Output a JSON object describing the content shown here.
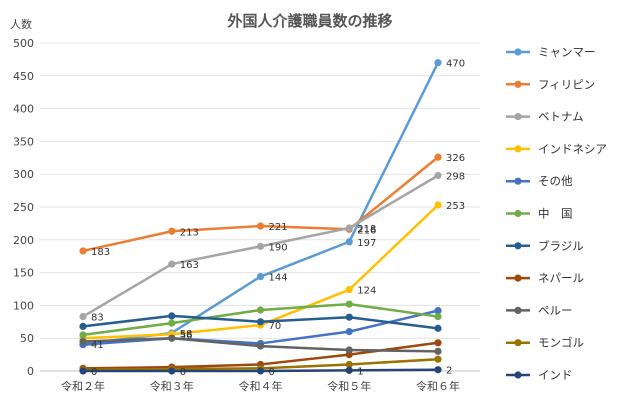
{
  "chart_data": {
    "type": "line",
    "title": "外国人介護職員数の推移",
    "ylabel": "人数",
    "xlabel": "",
    "categories": [
      "令和２年",
      "令和３年",
      "令和４年",
      "令和５年",
      "令和６年"
    ],
    "ylim": [
      0,
      500
    ],
    "yticks": [
      0,
      50,
      100,
      150,
      200,
      250,
      300,
      350,
      400,
      450,
      500
    ],
    "grid": true,
    "legend_position": "right",
    "series": [
      {
        "name": "ミャンマー",
        "color": "#5B9BD5",
        "values": [
          41,
          58,
          144,
          197,
          470
        ],
        "labels": [
          "41",
          "58",
          "144",
          "197",
          "470"
        ]
      },
      {
        "name": "フィリピン",
        "color": "#ED7D31",
        "values": [
          183,
          213,
          221,
          216,
          326
        ],
        "labels": [
          "183",
          "213",
          "221",
          "216",
          "326"
        ]
      },
      {
        "name": "ベトナム",
        "color": "#A5A5A5",
        "values": [
          83,
          163,
          190,
          218,
          298
        ],
        "labels": [
          "83",
          "163",
          "190",
          "218",
          "298"
        ]
      },
      {
        "name": "インドネシア",
        "color": "#FFC000",
        "values": [
          50,
          56,
          70,
          124,
          253
        ],
        "labels": [
          "",
          "56",
          "70",
          "124",
          "253"
        ]
      },
      {
        "name": "その他",
        "color": "#4472C4",
        "values": [
          40,
          50,
          42,
          60,
          92
        ],
        "labels": [],
        "hide_labels": true
      },
      {
        "name": "中　国",
        "color": "#70AD47",
        "values": [
          55,
          73,
          93,
          102,
          83
        ],
        "labels": []
      },
      {
        "name": "ブラジル",
        "color": "#255E91",
        "values": [
          68,
          84,
          75,
          82,
          65
        ],
        "labels": []
      },
      {
        "name": "ネパール",
        "color": "#9E480E",
        "values": [
          4,
          6,
          10,
          25,
          43
        ],
        "labels": []
      },
      {
        "name": "ペルー",
        "color": "#636363",
        "values": [
          45,
          50,
          38,
          32,
          30
        ],
        "labels": []
      },
      {
        "name": "モンゴル",
        "color": "#997300",
        "values": [
          2,
          3,
          4,
          10,
          18
        ],
        "labels": []
      },
      {
        "name": "インド",
        "color": "#264478",
        "values": [
          0,
          0,
          0,
          1,
          2
        ],
        "labels": [
          "0",
          "0",
          "0",
          "1",
          "2"
        ]
      }
    ]
  }
}
